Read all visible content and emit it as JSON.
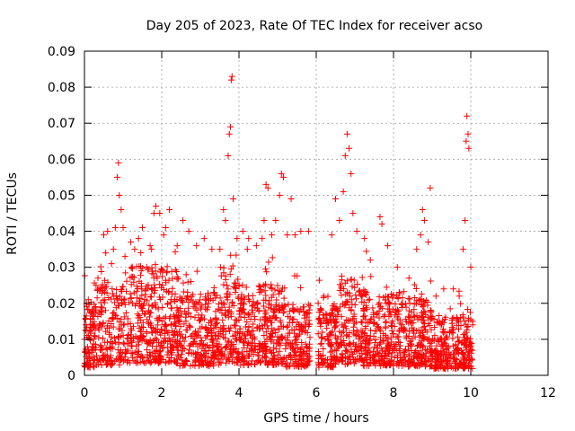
{
  "chart_data": {
    "type": "scatter",
    "title": "Day 205 of 2023, Rate Of TEC Index for receiver acso",
    "xlabel": "GPS time / hours",
    "ylabel": "ROTI / TECUs",
    "xlim": [
      0,
      12
    ],
    "ylim": [
      0,
      0.09
    ],
    "xticks": [
      0,
      2,
      4,
      6,
      8,
      10,
      12
    ],
    "xtick_labels": [
      "0",
      "2",
      "4",
      "6",
      "8",
      "10",
      "12"
    ],
    "yticks": [
      0,
      0.01,
      0.02,
      0.03,
      0.04,
      0.05,
      0.06,
      0.07,
      0.08,
      0.09
    ],
    "ytick_labels": [
      "0",
      "0.01",
      "0.02",
      "0.03",
      "0.04",
      "0.05",
      "0.06",
      "0.07",
      "0.08",
      "0.09"
    ],
    "grid": true,
    "marker": "+",
    "series_color": "#ff0000",
    "x_data_range": [
      0,
      10.05
    ],
    "data_gap_hours": [
      5.85,
      6.05
    ],
    "points": [
      [
        0.0,
        0.01
      ],
      [
        0.05,
        0.02
      ],
      [
        0.1,
        0.021
      ],
      [
        0.15,
        0.014
      ],
      [
        0.2,
        0.008
      ],
      [
        0.3,
        0.025
      ],
      [
        0.35,
        0.027
      ],
      [
        0.5,
        0.039
      ],
      [
        0.55,
        0.034
      ],
      [
        0.6,
        0.04
      ],
      [
        0.7,
        0.031
      ],
      [
        0.75,
        0.035
      ],
      [
        0.8,
        0.041
      ],
      [
        0.85,
        0.055
      ],
      [
        0.88,
        0.059
      ],
      [
        0.9,
        0.05
      ],
      [
        0.95,
        0.046
      ],
      [
        1.0,
        0.041
      ],
      [
        1.05,
        0.033
      ],
      [
        1.2,
        0.037
      ],
      [
        1.3,
        0.035
      ],
      [
        1.4,
        0.038
      ],
      [
        1.5,
        0.041
      ],
      [
        1.7,
        0.036
      ],
      [
        1.8,
        0.045
      ],
      [
        1.85,
        0.047
      ],
      [
        1.95,
        0.045
      ],
      [
        2.05,
        0.039
      ],
      [
        2.1,
        0.041
      ],
      [
        2.2,
        0.046
      ],
      [
        2.4,
        0.036
      ],
      [
        2.55,
        0.043
      ],
      [
        2.7,
        0.04
      ],
      [
        2.9,
        0.036
      ],
      [
        3.1,
        0.038
      ],
      [
        3.3,
        0.035
      ],
      [
        3.6,
        0.046
      ],
      [
        3.65,
        0.043
      ],
      [
        3.72,
        0.061
      ],
      [
        3.75,
        0.067
      ],
      [
        3.78,
        0.069
      ],
      [
        3.8,
        0.082
      ],
      [
        3.82,
        0.083
      ],
      [
        3.85,
        0.049
      ],
      [
        3.95,
        0.038
      ],
      [
        4.1,
        0.04
      ],
      [
        4.25,
        0.038
      ],
      [
        4.45,
        0.036
      ],
      [
        4.6,
        0.038
      ],
      [
        4.65,
        0.043
      ],
      [
        4.7,
        0.053
      ],
      [
        4.75,
        0.052
      ],
      [
        4.85,
        0.039
      ],
      [
        4.95,
        0.043
      ],
      [
        5.05,
        0.05
      ],
      [
        5.1,
        0.056
      ],
      [
        5.15,
        0.055
      ],
      [
        5.25,
        0.039
      ],
      [
        5.35,
        0.049
      ],
      [
        5.45,
        0.039
      ],
      [
        5.6,
        0.04
      ],
      [
        5.8,
        0.04
      ],
      [
        6.05,
        0.02
      ],
      [
        6.2,
        0.022
      ],
      [
        6.4,
        0.039
      ],
      [
        6.5,
        0.049
      ],
      [
        6.6,
        0.043
      ],
      [
        6.7,
        0.051
      ],
      [
        6.75,
        0.061
      ],
      [
        6.8,
        0.067
      ],
      [
        6.85,
        0.063
      ],
      [
        6.9,
        0.056
      ],
      [
        6.95,
        0.045
      ],
      [
        7.05,
        0.04
      ],
      [
        7.25,
        0.038
      ],
      [
        7.4,
        0.032
      ],
      [
        7.65,
        0.044
      ],
      [
        7.7,
        0.042
      ],
      [
        7.85,
        0.036
      ],
      [
        8.1,
        0.03
      ],
      [
        8.4,
        0.027
      ],
      [
        8.6,
        0.035
      ],
      [
        8.7,
        0.039
      ],
      [
        8.75,
        0.046
      ],
      [
        8.8,
        0.043
      ],
      [
        8.9,
        0.037
      ],
      [
        8.95,
        0.052
      ],
      [
        9.1,
        0.022
      ],
      [
        9.3,
        0.024
      ],
      [
        9.55,
        0.024
      ],
      [
        9.7,
        0.022
      ],
      [
        9.8,
        0.035
      ],
      [
        9.85,
        0.043
      ],
      [
        9.88,
        0.065
      ],
      [
        9.9,
        0.072
      ],
      [
        9.93,
        0.067
      ],
      [
        9.95,
        0.063
      ],
      [
        10.0,
        0.03
      ],
      [
        10.05,
        0.015
      ]
    ]
  }
}
